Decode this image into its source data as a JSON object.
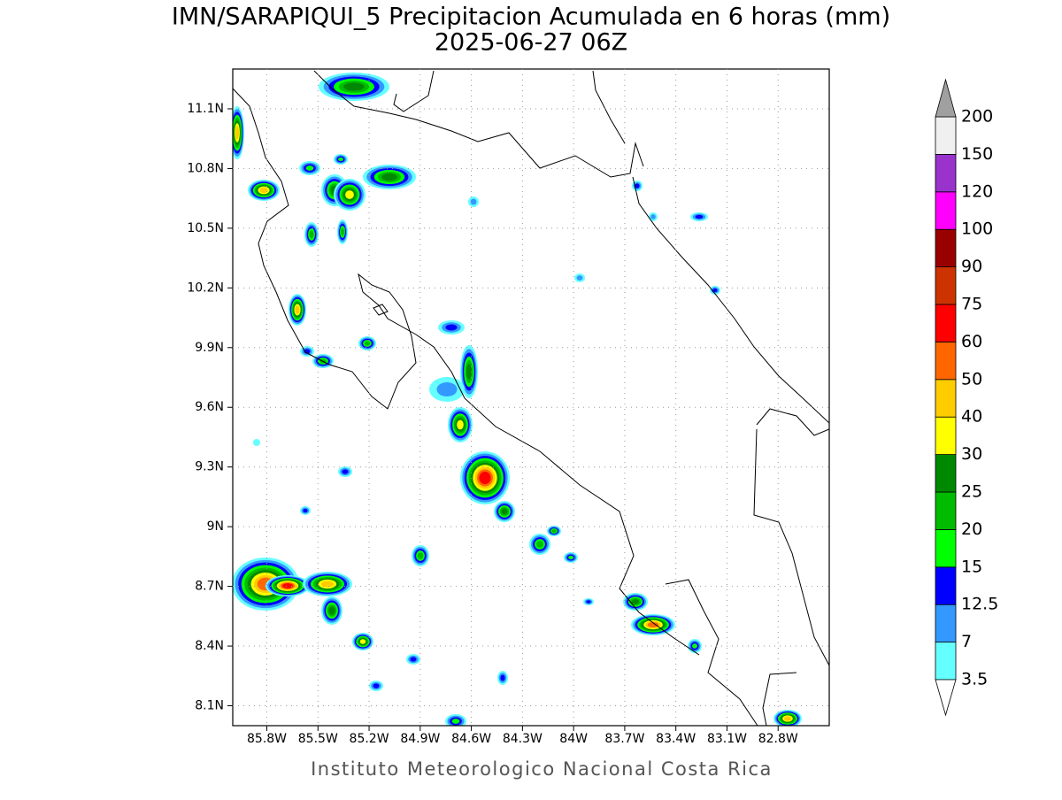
{
  "title": "IMN/SARAPIQUI_5 Precipitacion Acumulada en 6 horas (mm)",
  "subtitle": "2025-06-27 06Z",
  "footer": "Instituto Meteorologico Nacional Costa Rica",
  "map": {
    "xlim": [
      -86.0,
      -82.5
    ],
    "ylim": [
      8.0,
      11.3
    ],
    "grid": true,
    "lon_ticks": [
      {
        "value": -85.8,
        "label": "85.8W"
      },
      {
        "value": -85.5,
        "label": "85.5W"
      },
      {
        "value": -85.2,
        "label": "85.2W"
      },
      {
        "value": -84.9,
        "label": "84.9W"
      },
      {
        "value": -84.6,
        "label": "84.6W"
      },
      {
        "value": -84.3,
        "label": "84.3W"
      },
      {
        "value": -84.0,
        "label": "84W"
      },
      {
        "value": -83.7,
        "label": "83.7W"
      },
      {
        "value": -83.4,
        "label": "83.4W"
      },
      {
        "value": -83.1,
        "label": "83.1W"
      },
      {
        "value": -82.8,
        "label": "82.8W"
      }
    ],
    "lat_ticks": [
      {
        "value": 11.1,
        "label": "11.1N"
      },
      {
        "value": 10.8,
        "label": "10.8N"
      },
      {
        "value": 10.5,
        "label": "10.5N"
      },
      {
        "value": 10.2,
        "label": "10.2N"
      },
      {
        "value": 9.9,
        "label": "9.9N"
      },
      {
        "value": 9.6,
        "label": "9.6N"
      },
      {
        "value": 9.3,
        "label": "9.3N"
      },
      {
        "value": 9.0,
        "label": "9N"
      },
      {
        "value": 8.7,
        "label": "8.7N"
      },
      {
        "value": 8.4,
        "label": "8.4N"
      },
      {
        "value": 8.1,
        "label": "8.1N"
      }
    ]
  },
  "colorbar": {
    "levels": [
      3.5,
      7,
      12.5,
      15,
      20,
      25,
      30,
      40,
      50,
      60,
      75,
      90,
      100,
      120,
      150,
      200
    ],
    "colors": [
      "#66ffff",
      "#3399ff",
      "#0000ff",
      "#00ff00",
      "#00bb00",
      "#008800",
      "#ffff00",
      "#ffcc00",
      "#ff6600",
      "#ff0000",
      "#cc3300",
      "#990000",
      "#ff00ff",
      "#9933cc",
      "#f0f0f0"
    ],
    "under_color": "#ffffff",
    "over_color": "#a0a0a0"
  }
}
